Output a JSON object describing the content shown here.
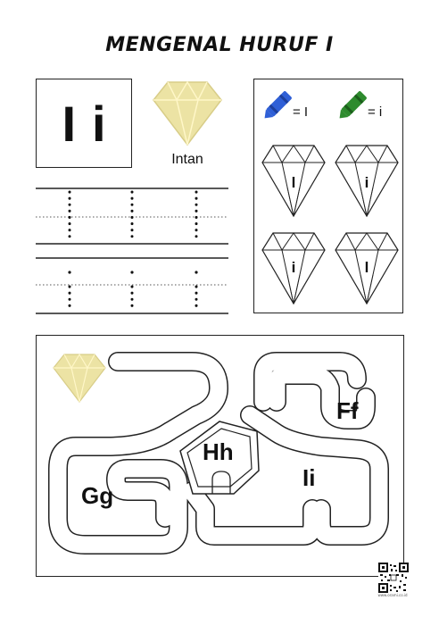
{
  "title": "MENGENAL HURUF I",
  "letter_box": {
    "upper": "I",
    "lower": "i"
  },
  "word": "Intan",
  "crayons": [
    {
      "color_name": "blue",
      "color": "#2f5fd6",
      "label": "= I"
    },
    {
      "color_name": "green",
      "color": "#2e8b2e",
      "label": "= i"
    }
  ],
  "gem_letters": [
    "l",
    "i",
    "i",
    "l"
  ],
  "maze_labels": [
    "Gg",
    "Hh",
    "Ii",
    "Ff"
  ],
  "qr_caption": "www.orami.co.id",
  "colors": {
    "gem_fill": "#ece3a4",
    "gem_stroke": "#d6cb85",
    "line": "#222222"
  }
}
